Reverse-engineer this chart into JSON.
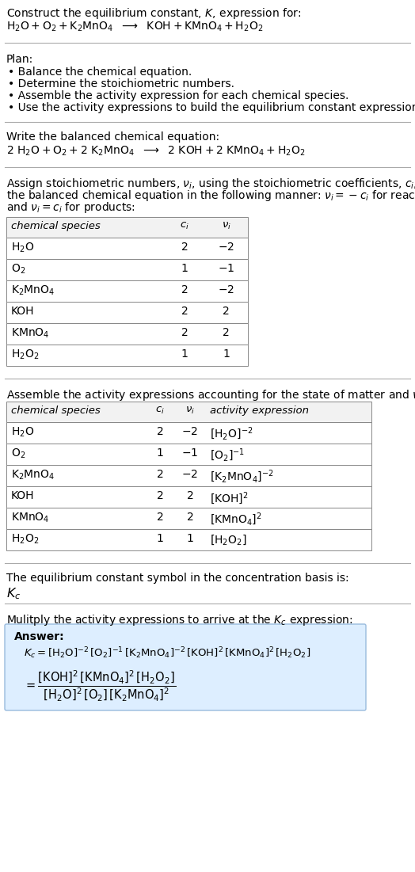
{
  "bg_color": "#ffffff",
  "title_line1": "Construct the equilibrium constant, $K$, expression for:",
  "title_line2_parts": [
    "$\\mathrm{H_2O + O_2 + K_2MnO_4}$",
    " ⟶ ",
    "$\\mathrm{KOH + KMnO_4 + H_2O_2}$"
  ],
  "plan_header": "Plan:",
  "plan_items": [
    "• Balance the chemical equation.",
    "• Determine the stoichiometric numbers.",
    "• Assemble the activity expression for each chemical species.",
    "• Use the activity expressions to build the equilibrium constant expression."
  ],
  "balanced_header": "Write the balanced chemical equation:",
  "balanced_eq": "$\\mathrm{2\\ H_2O + O_2 + 2\\ K_2MnO_4}$ ⟶ $\\mathrm{2\\ KOH + 2\\ KMnO_4 + H_2O_2}$",
  "stoich_header_lines": [
    "Assign stoichiometric numbers, $\\nu_i$, using the stoichiometric coefficients, $c_i$, from",
    "the balanced chemical equation in the following manner: $\\nu_i = -c_i$ for reactants",
    "and $\\nu_i = c_i$ for products:"
  ],
  "table1_headers": [
    "chemical species",
    "$c_i$",
    "$\\nu_i$"
  ],
  "table1_rows": [
    [
      "$\\mathrm{H_2O}$",
      "2",
      "$-2$"
    ],
    [
      "$\\mathrm{O_2}$",
      "1",
      "$-1$"
    ],
    [
      "$\\mathrm{K_2MnO_4}$",
      "2",
      "$-2$"
    ],
    [
      "KOH",
      "2",
      "2"
    ],
    [
      "$\\mathrm{KMnO_4}$",
      "2",
      "2"
    ],
    [
      "$\\mathrm{H_2O_2}$",
      "1",
      "1"
    ]
  ],
  "activity_header": "Assemble the activity expressions accounting for the state of matter and $\\nu_i$:",
  "table2_headers": [
    "chemical species",
    "$c_i$",
    "$\\nu_i$",
    "activity expression"
  ],
  "table2_rows": [
    [
      "$\\mathrm{H_2O}$",
      "2",
      "$-2$",
      "$[\\mathrm{H_2O}]^{-2}$"
    ],
    [
      "$\\mathrm{O_2}$",
      "1",
      "$-1$",
      "$[\\mathrm{O_2}]^{-1}$"
    ],
    [
      "$\\mathrm{K_2MnO_4}$",
      "2",
      "$-2$",
      "$[\\mathrm{K_2MnO_4}]^{-2}$"
    ],
    [
      "KOH",
      "2",
      "2",
      "$[\\mathrm{KOH}]^2$"
    ],
    [
      "$\\mathrm{KMnO_4}$",
      "2",
      "2",
      "$[\\mathrm{KMnO_4}]^2$"
    ],
    [
      "$\\mathrm{H_2O_2}$",
      "1",
      "1",
      "$[\\mathrm{H_2O_2}]$"
    ]
  ],
  "kc_header": "The equilibrium constant symbol in the concentration basis is:",
  "kc_symbol": "$K_c$",
  "multiply_header": "Mulitply the activity expressions to arrive at the $K_c$ expression:",
  "answer_label": "Answer:",
  "answer_line1": "$K_c = [\\mathrm{H_2O}]^{-2}\\,[\\mathrm{O_2}]^{-1}\\,[\\mathrm{K_2MnO_4}]^{-2}\\,[\\mathrm{KOH}]^2\\,[\\mathrm{KMnO_4}]^2\\,[\\mathrm{H_2O_2}]$",
  "answer_eq_lhs": "$= \\dfrac{[\\mathrm{KOH}]^2\\,[\\mathrm{KMnO_4}]^2\\,[\\mathrm{H_2O_2}]}{[\\mathrm{H_2O}]^2\\,[\\mathrm{O_2}]\\,[\\mathrm{K_2MnO_4}]^2}$",
  "font_size": 10.0,
  "table_font_size": 10.0,
  "answer_box_color": "#ddeeff",
  "answer_box_edge": "#99bbdd",
  "sep_color": "#aaaaaa",
  "table_border": "#888888",
  "table_header_bg": "#f2f2f2"
}
